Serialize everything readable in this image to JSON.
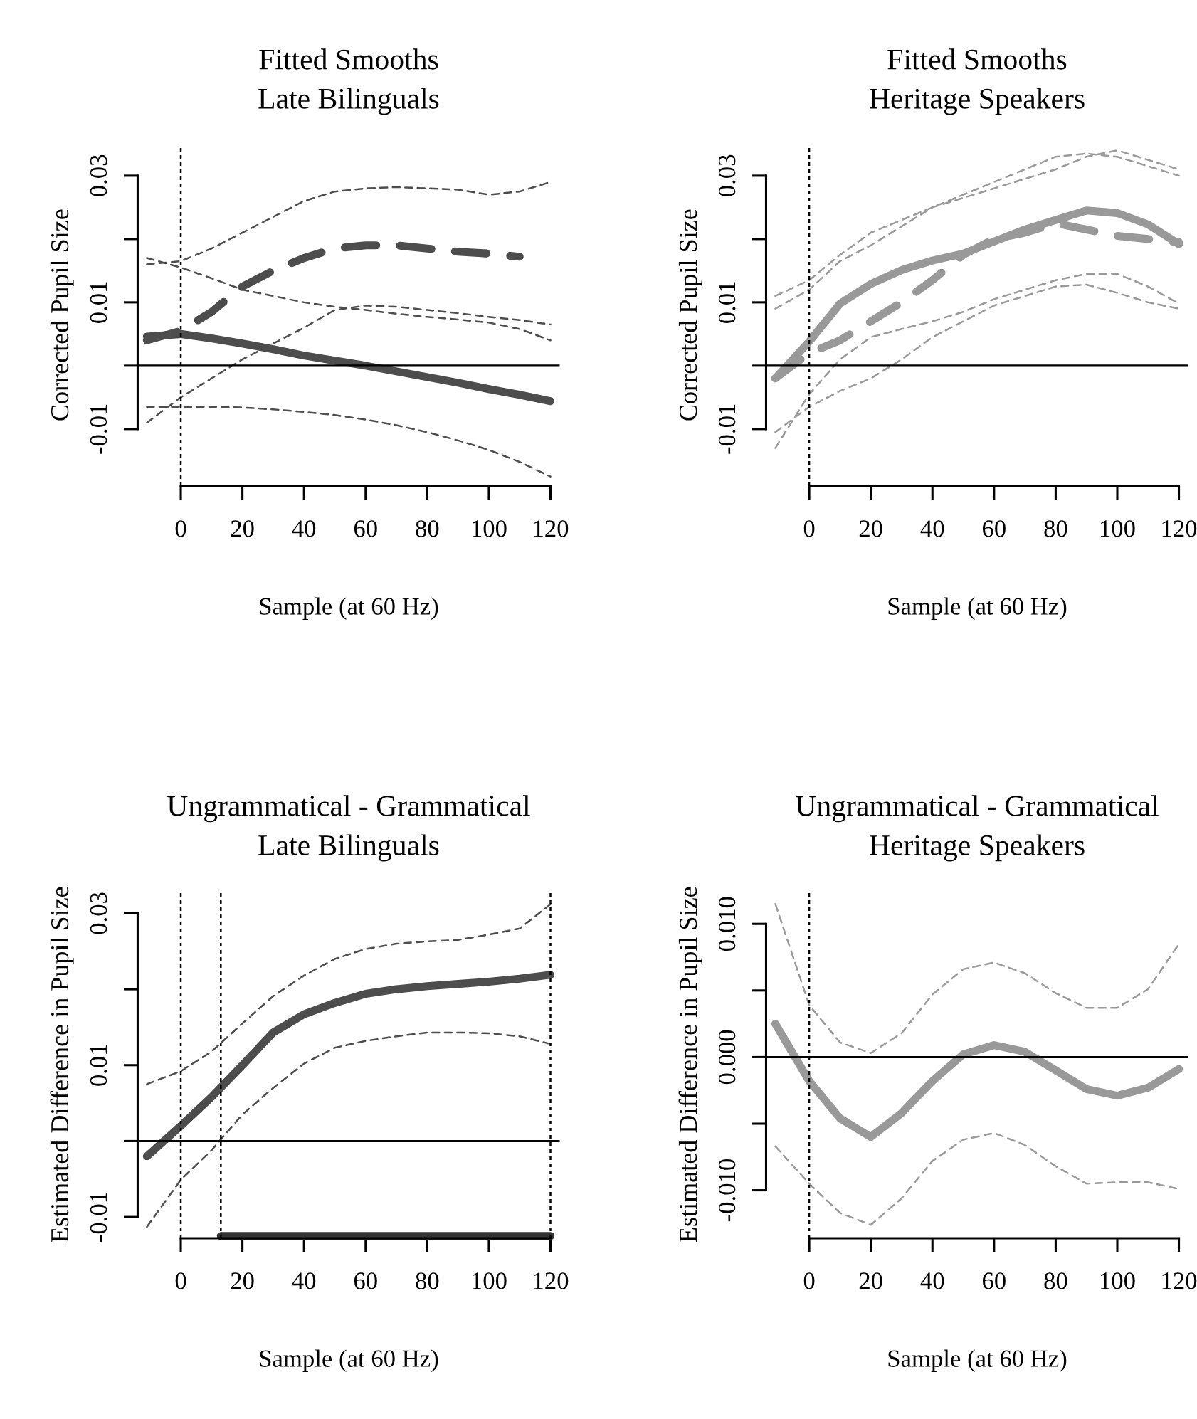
{
  "chart_data": [
    {
      "type": "line",
      "title": "Fitted Smooths\nLate Bilinguals",
      "xlabel": "Sample (at 60 Hz)",
      "ylabel": "Corrected Pupil Size",
      "x": [
        -11,
        0,
        10,
        20,
        30,
        40,
        50,
        60,
        70,
        80,
        90,
        100,
        110,
        120
      ],
      "series": [
        {
          "color": "#4d4d4d",
          "line_style": "dotted",
          "values": [
            0.017,
            0.0155,
            0.0138,
            0.012,
            0.011,
            0.01,
            0.0093,
            0.0088,
            0.0082,
            0.0077,
            0.0073,
            0.0068,
            0.0058,
            0.004
          ]
        },
        {
          "color": "#4d4d4d",
          "line_style": "dotted",
          "values": [
            -0.0065,
            -0.0065,
            -0.0065,
            -0.0066,
            -0.0069,
            -0.0073,
            -0.0078,
            -0.0085,
            -0.0094,
            -0.0105,
            -0.0118,
            -0.0133,
            -0.0152,
            -0.0175
          ]
        },
        {
          "color": "#4d4d4d",
          "line_style": "dotted",
          "values": [
            0.016,
            0.0165,
            0.0185,
            0.021,
            0.0235,
            0.026,
            0.0275,
            0.028,
            0.0282,
            0.028,
            0.0278,
            0.027,
            0.0275,
            0.029
          ]
        },
        {
          "color": "#4d4d4d",
          "line_style": "dotted",
          "values": [
            -0.009,
            -0.005,
            -0.002,
            0.001,
            0.0035,
            0.006,
            0.0088,
            0.0095,
            0.0093,
            0.0088,
            0.0083,
            0.0077,
            0.0072,
            0.0065
          ]
        },
        {
          "color": "#4d4d4d",
          "line_style": "solid",
          "values": [
            0.0046,
            0.005,
            0.0043,
            0.0035,
            0.0026,
            0.0016,
            0.0008,
            0,
            -0.0009,
            -0.0018,
            -0.0027,
            -0.0037,
            -0.0046,
            -0.0056
          ]
        },
        {
          "color": "#4d4d4d",
          "line_style": "dashed",
          "values": [
            0.004,
            0.0055,
            0.0085,
            0.0125,
            0.015,
            0.017,
            0.0185,
            0.019,
            0.019,
            0.0185,
            0.018,
            0.0177,
            0.0172,
            null
          ]
        }
      ],
      "xlim": [
        -14,
        123
      ],
      "ylim": [
        -0.019,
        0.035
      ],
      "xticks": [
        0,
        20,
        40,
        60,
        80,
        100,
        120
      ],
      "yticks": [
        {
          "value": -0.01,
          "label": "-0.01"
        },
        {
          "value": 0,
          "label": null
        },
        {
          "value": 0.01,
          "label": "0.01"
        },
        {
          "value": 0.02,
          "label": null
        },
        {
          "value": 0.03,
          "label": "0.03"
        }
      ],
      "ref_lines": [
        {
          "axis": "y",
          "value": 0,
          "line_style": "solid"
        },
        {
          "axis": "x",
          "value": 0,
          "line_style": "dotted"
        }
      ]
    },
    {
      "type": "line",
      "title": "Fitted Smooths\nHeritage Speakers",
      "xlabel": "Sample (at 60 Hz)",
      "ylabel": "Corrected Pupil Size",
      "x": [
        -11,
        0,
        10,
        20,
        30,
        40,
        50,
        60,
        70,
        80,
        90,
        100,
        110,
        120
      ],
      "series": [
        {
          "color": "#999999",
          "line_style": "dotted",
          "values": [
            0.011,
            0.0135,
            0.0175,
            0.021,
            0.023,
            0.025,
            0.027,
            0.029,
            0.031,
            0.033,
            0.0335,
            0.033,
            0.0315,
            0.03
          ]
        },
        {
          "color": "#999999",
          "line_style": "dotted",
          "values": [
            -0.0105,
            -0.0065,
            -0.004,
            -0.002,
            0.001,
            0.0045,
            0.007,
            0.0095,
            0.011,
            0.0125,
            0.0128,
            0.0115,
            0.01,
            0.009
          ]
        },
        {
          "color": "#999999",
          "line_style": "dotted",
          "values": [
            0.009,
            0.012,
            0.0165,
            0.019,
            0.022,
            0.025,
            0.0265,
            0.028,
            0.0295,
            0.031,
            0.033,
            0.034,
            0.0325,
            0.031
          ]
        },
        {
          "color": "#999999",
          "line_style": "dotted",
          "values": [
            -0.013,
            -0.0045,
            0.001,
            0.0045,
            0.0058,
            0.007,
            0.0085,
            0.0105,
            0.012,
            0.0135,
            0.0145,
            0.0145,
            0.0125,
            0.0098
          ]
        },
        {
          "color": "#999999",
          "line_style": "solid",
          "values": [
            -0.002,
            0.0038,
            0.0098,
            0.0129,
            0.0151,
            0.0166,
            0.0177,
            0.0196,
            0.0215,
            0.023,
            0.0245,
            0.0241,
            0.0223,
            0.0192
          ]
        },
        {
          "color": "#999999",
          "line_style": "dashed",
          "values": [
            -0.002,
            0.002,
            0.004,
            0.007,
            0.01,
            0.0135,
            0.0175,
            0.02,
            0.021,
            0.0225,
            0.0215,
            0.0205,
            0.02,
            0.0195
          ]
        }
      ],
      "xlim": [
        -14,
        123
      ],
      "ylim": [
        -0.019,
        0.035
      ],
      "xticks": [
        0,
        20,
        40,
        60,
        80,
        100,
        120
      ],
      "yticks": [
        {
          "value": -0.01,
          "label": "-0.01"
        },
        {
          "value": 0,
          "label": null
        },
        {
          "value": 0.01,
          "label": "0.01"
        },
        {
          "value": 0.02,
          "label": null
        },
        {
          "value": 0.03,
          "label": "0.03"
        }
      ],
      "ref_lines": [
        {
          "axis": "y",
          "value": 0,
          "line_style": "solid"
        },
        {
          "axis": "x",
          "value": 0,
          "line_style": "dotted"
        }
      ]
    },
    {
      "type": "line",
      "title": "Ungrammatical - Grammatical\nLate Bilinguals",
      "xlabel": "Sample (at 60 Hz)",
      "ylabel": "Estimated Difference in Pupil Size",
      "x": [
        -11,
        0,
        10,
        20,
        30,
        40,
        50,
        60,
        70,
        80,
        90,
        100,
        110,
        120
      ],
      "series": [
        {
          "color": "#4d4d4d",
          "line_style": "dotted",
          "values": [
            0.0075,
            0.0092,
            0.0118,
            0.0155,
            0.0191,
            0.0218,
            0.024,
            0.0253,
            0.026,
            0.0263,
            0.0265,
            0.0272,
            0.028,
            0.0312
          ]
        },
        {
          "color": "#4d4d4d",
          "line_style": "dotted",
          "values": [
            -0.0113,
            -0.0051,
            -0.0012,
            0.0035,
            0.007,
            0.0102,
            0.0123,
            0.0132,
            0.0138,
            0.0143,
            0.0143,
            0.0142,
            0.0138,
            0.0128
          ]
        },
        {
          "color": "#4d4d4d",
          "line_style": "solid",
          "values": [
            -0.002,
            0.002,
            0.0058,
            0.01,
            0.0143,
            0.0167,
            0.0182,
            0.0194,
            0.02,
            0.0204,
            0.0207,
            0.021,
            0.0214,
            0.0219
          ]
        },
        {
          "color": "#333333",
          "line_style": "solid",
          "x": [
            13,
            120
          ],
          "values": [
            -0.0125,
            -0.0125
          ]
        }
      ],
      "xlim": [
        -14,
        123
      ],
      "ylim": [
        -0.0128,
        0.033
      ],
      "xticks": [
        0,
        20,
        40,
        60,
        80,
        100,
        120
      ],
      "yticks": [
        {
          "value": -0.01,
          "label": "-0.01"
        },
        {
          "value": 0,
          "label": null
        },
        {
          "value": 0.01,
          "label": "0.01"
        },
        {
          "value": 0.02,
          "label": null
        },
        {
          "value": 0.03,
          "label": "0.03"
        }
      ],
      "ref_lines": [
        {
          "axis": "y",
          "value": 0,
          "line_style": "solid"
        },
        {
          "axis": "x",
          "value": 0,
          "line_style": "dotted"
        },
        {
          "axis": "x",
          "value": 13,
          "line_style": "dotted"
        },
        {
          "axis": "x",
          "value": 120,
          "line_style": "dotted"
        }
      ]
    },
    {
      "type": "line",
      "title": "Ungrammatical - Grammatical\nHeritage Speakers",
      "xlabel": "Sample (at 60 Hz)",
      "ylabel": "Estimated Difference in Pupil Size",
      "x": [
        -11,
        0,
        10,
        20,
        30,
        40,
        50,
        60,
        70,
        80,
        90,
        100,
        110,
        120
      ],
      "series": [
        {
          "color": "#999999",
          "line_style": "dotted",
          "values": [
            0.0115,
            0.0039,
            0.0011,
            0.0003,
            0.0018,
            0.0047,
            0.0066,
            0.0071,
            0.0063,
            0.0048,
            0.0037,
            0.0037,
            0.0051,
            0.0085
          ]
        },
        {
          "color": "#999999",
          "line_style": "dotted",
          "values": [
            -0.0067,
            -0.0095,
            -0.0117,
            -0.0126,
            -0.0106,
            -0.0078,
            -0.0062,
            -0.0057,
            -0.0066,
            -0.0082,
            -0.0095,
            -0.0094,
            -0.0094,
            -0.0099
          ]
        },
        {
          "color": "#999999",
          "line_style": "solid",
          "values": [
            0.0025,
            -0.0018,
            -0.0046,
            -0.006,
            -0.0042,
            -0.0018,
            0.0002,
            0.0009,
            0.0004,
            -0.001,
            -0.0024,
            -0.0029,
            -0.0023,
            -0.0009
          ]
        }
      ],
      "xlim": [
        -14,
        123
      ],
      "ylim": [
        -0.0136,
        0.0125
      ],
      "xticks": [
        0,
        20,
        40,
        60,
        80,
        100,
        120
      ],
      "yticks": [
        {
          "value": -0.01,
          "label": "-0.010"
        },
        {
          "value": -0.005,
          "label": null
        },
        {
          "value": 0,
          "label": "0.000"
        },
        {
          "value": 0.005,
          "label": null
        },
        {
          "value": 0.01,
          "label": "0.010"
        }
      ],
      "ref_lines": [
        {
          "axis": "y",
          "value": 0,
          "line_style": "solid"
        },
        {
          "axis": "x",
          "value": 0,
          "line_style": "dotted"
        }
      ]
    }
  ]
}
